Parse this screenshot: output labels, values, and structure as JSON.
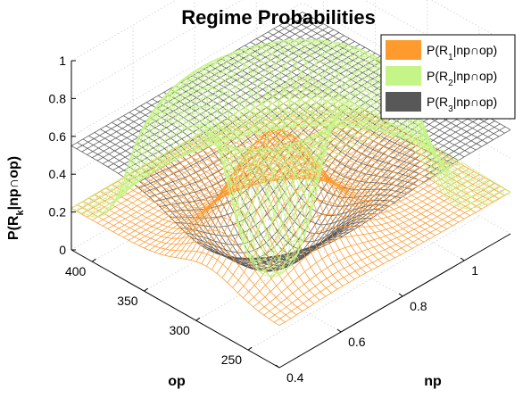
{
  "chart_data": {
    "type": "surface3d",
    "title": "Regime Probabilities",
    "xlabel": "op",
    "ylabel": "np",
    "zlabel": "P(R_k|np∩op)",
    "zlabel_parts": {
      "main": "P(R",
      "sub": "k",
      "rest": "|np∩op)"
    },
    "x_ticks": [
      250,
      300,
      350,
      400
    ],
    "y_ticks": [
      0.4,
      0.6,
      0.8,
      1
    ],
    "z_ticks": [
      0,
      0.2,
      0.4,
      0.6,
      0.8,
      1
    ],
    "xlim": [
      220,
      420
    ],
    "ylim": [
      0.4,
      1.15
    ],
    "zlim": [
      0,
      1
    ],
    "grid": true,
    "legend_position": "top-right",
    "series": [
      {
        "name": "P(R_1|np∩op)",
        "name_parts": {
          "main": "P(R",
          "sub": "1",
          "rest": "|np∩op)"
        },
        "color": "#ff9a2e",
        "baseline": 0.22,
        "center_value": 0.82
      },
      {
        "name": "P(R_2|np∩op)",
        "name_parts": {
          "main": "P(R",
          "sub": "2",
          "rest": "|np∩op)"
        },
        "color": "#c6f587",
        "baseline": 0.22,
        "ring_value": 1.0,
        "center_value": 0.06
      },
      {
        "name": "P(R_3|np∩op)",
        "name_parts": {
          "main": "P(R",
          "sub": "3",
          "rest": "|np∩op)"
        },
        "color": "#585858",
        "baseline": 0.55,
        "center_value": 0.12
      }
    ]
  }
}
